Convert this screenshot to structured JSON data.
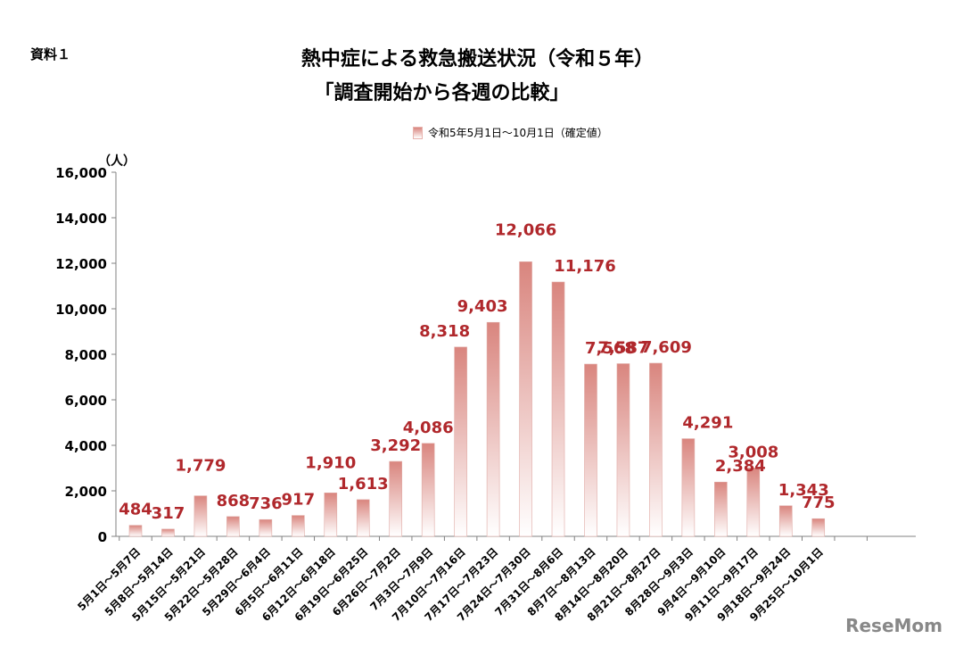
{
  "corner_label": "資料１",
  "title_line1": "熱中症による救急搬送状況（令和５年）",
  "title_line2": "「調査開始から各週の比較」",
  "legend_label": "令和5年5月1日～10月1日（確定値）",
  "watermark": "ReseMom",
  "colors": {
    "bar_top": "#d9857e",
    "bar_bottom": "#ffffff",
    "label": "#b0282c",
    "axis": "#808080"
  },
  "chart_data": {
    "type": "bar",
    "ylabel": "（人）",
    "ylim": [
      0,
      16000
    ],
    "yticks": [
      0,
      2000,
      4000,
      6000,
      8000,
      10000,
      12000,
      14000,
      16000
    ],
    "ytick_labels": [
      "0",
      "2,000",
      "4,000",
      "6,000",
      "8,000",
      "10,000",
      "12,000",
      "14,000",
      "16,000"
    ],
    "categories": [
      "5月1日～5月7日",
      "5月8日～5月14日",
      "5月15日～5月21日",
      "5月22日～5月28日",
      "5月29日～6月4日",
      "6月5日～6月11日",
      "6月12日～6月18日",
      "6月19日～6月25日",
      "6月26日～7月2日",
      "7月3日～7月9日",
      "7月10日～7月16日",
      "7月17日～7月23日",
      "7月24日～7月30日",
      "7月31日～8月6日",
      "8月7日～8月13日",
      "8月14日～8月20日",
      "8月21日～8月27日",
      "8月28日～9月3日",
      "9月4日～9月10日",
      "9月11日～9月17日",
      "9月18日～9月24日",
      "9月25日～10月1日"
    ],
    "values": [
      484,
      317,
      1779,
      868,
      736,
      917,
      1910,
      1613,
      3292,
      4086,
      8318,
      9403,
      12066,
      11176,
      7568,
      7587,
      7609,
      4291,
      2384,
      3008,
      1343,
      775
    ],
    "value_labels": [
      "484",
      "317",
      "1,779",
      "868",
      "736",
      "917",
      "1,910",
      "1,613",
      "3,292",
      "4,086",
      "8,318",
      "9,403",
      "12,066",
      "11,176",
      "7,568",
      "7,587",
      "7,609",
      "4,291",
      "2,384",
      "3,008",
      "1,343",
      "775"
    ],
    "series": [
      {
        "name": "令和5年5月1日～10月1日（確定値）"
      }
    ]
  }
}
